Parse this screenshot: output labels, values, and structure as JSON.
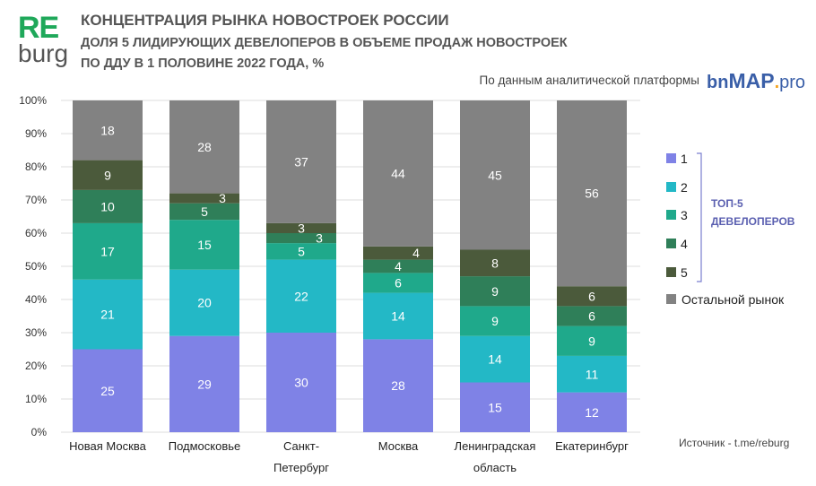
{
  "logo": {
    "line1": "RE",
    "line2": "burg"
  },
  "header": {
    "title": "КОНЦЕНТРАЦИЯ РЫНКА НОВОСТРОЕК РОССИИ",
    "subtitle_line1": "ДОЛЯ 5 ЛИДИРУЮЩИХ ДЕВЕЛОПЕРОВ В ОБЪЕМЕ ПРОДАЖ НОВОСТРОЕК",
    "subtitle_line2": "ПО ДДУ В 1 ПОЛОВИНЕ 2022 ГОДА, %",
    "source_text": "По данным аналитической платформы",
    "source_logo": "bnMAP.pro"
  },
  "footer": "Источник - t.me/reburg",
  "legend_group_label": [
    "ТОП-5",
    "ДЕВЕЛОПЕРОВ"
  ],
  "chart_data": {
    "type": "bar",
    "stacked": true,
    "categories": [
      [
        "Новая Москва"
      ],
      [
        "Подмосковье"
      ],
      [
        "Санкт-",
        "Петербург"
      ],
      [
        "Москва"
      ],
      [
        "Ленинградская",
        "область"
      ],
      [
        "Екатеринбург"
      ]
    ],
    "series": [
      {
        "name": "1",
        "color": "#7f82e6",
        "values": [
          25,
          29,
          30,
          28,
          15,
          12
        ]
      },
      {
        "name": "2",
        "color": "#23b8c6",
        "values": [
          21,
          20,
          22,
          14,
          14,
          11
        ]
      },
      {
        "name": "3",
        "color": "#1fa98b",
        "values": [
          17,
          15,
          5,
          6,
          9,
          9
        ]
      },
      {
        "name": "4",
        "color": "#2f7f59",
        "values": [
          10,
          5,
          3,
          4,
          9,
          6
        ]
      },
      {
        "name": "5",
        "color": "#4b5a3b",
        "values": [
          9,
          3,
          3,
          4,
          8,
          6
        ]
      },
      {
        "name": "Остальной рынок",
        "color": "#828282",
        "values": [
          18,
          28,
          37,
          44,
          45,
          56
        ]
      }
    ],
    "ylim": [
      0,
      100
    ],
    "yticks": [
      "0%",
      "10%",
      "20%",
      "30%",
      "40%",
      "50%",
      "60%",
      "70%",
      "80%",
      "90%",
      "100%"
    ],
    "grid": true,
    "legend": "right"
  }
}
